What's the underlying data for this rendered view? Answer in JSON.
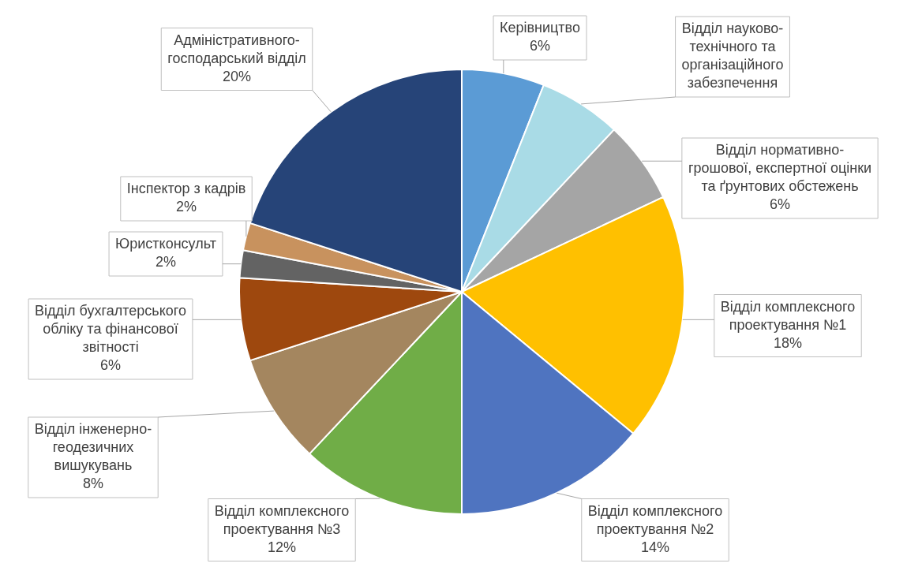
{
  "chart_data": {
    "type": "pie",
    "categories": [
      "Керівництво",
      "Відділ науково-технічного та організаційного забезпечення",
      "Відділ нормативно-грошової, експертної оцінки та ґрунтових обстежень",
      "Відділ комплексного проектування №1",
      "Відділ комплексного проектування №2",
      "Відділ комплексного проектування №3",
      "Відділ інженерно-геодезичних вишукувань",
      "Відділ бухгалтерського обліку та фінансової звітності",
      "Юристконсульт",
      "Інспектор з кадрів",
      "Адміністративного-господарський відділ"
    ],
    "values": [
      6,
      6,
      6,
      18,
      14,
      12,
      8,
      6,
      2,
      2,
      20
    ],
    "value_labels": [
      "6%",
      null,
      "6%",
      "18%",
      "14%",
      "12%",
      "8%",
      "6%",
      "2%",
      "2%",
      "20%"
    ],
    "colors": [
      "#5b9bd5",
      "#a9dbe6",
      "#a5a5a5",
      "#ffc000",
      "#4f74c0",
      "#70ad47",
      "#a4865f",
      "#9e480e",
      "#636363",
      "#c8925e",
      "#264478"
    ],
    "legend": false
  }
}
